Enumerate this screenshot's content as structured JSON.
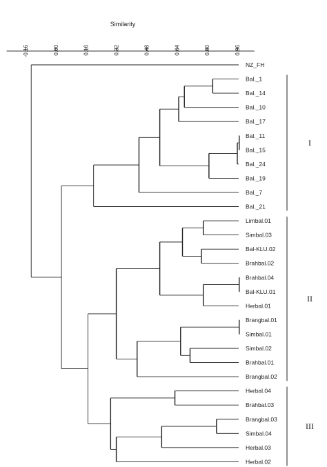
{
  "chart_data": {
    "type": "dendrogram",
    "axis": {
      "title": "Similarity",
      "ticks": [
        "-0.16",
        "0.00",
        "0.16",
        "0.32",
        "0.48",
        "0.64",
        "0.80",
        "0.96"
      ],
      "tick_values": [
        -0.16,
        0.0,
        0.16,
        0.32,
        0.48,
        0.64,
        0.8,
        0.96
      ],
      "range": [
        -0.26,
        1.05
      ]
    },
    "leaves": [
      "NZ_FH",
      "Bal._1",
      "Bal._14",
      "Bal._10",
      "Bal._17",
      "Bal._11",
      "Bal._15",
      "Bal._24",
      "Bal._19",
      "Bal._7",
      "Bal._21",
      "Limbal.01",
      "Simbal.03",
      "Bal-KLU.02",
      "Brahbal.02",
      "Brahbal.04",
      "Bal-KLU.01",
      "Herbal.01",
      "Brangbal.01",
      "Simbal.01",
      "Simbal.02",
      "Brahbal.01",
      "Brangbal.02",
      "Herbal.04",
      "Brahbal.03",
      "Brangbal.03",
      "Simbal.04",
      "Herbal.03",
      "Herbal.02"
    ],
    "merges": [
      {
        "id": "a1",
        "children": [
          "Bal._1",
          "Bal._14"
        ],
        "similarity": 0.83
      },
      {
        "id": "a2",
        "children": [
          "a1",
          "Bal._10"
        ],
        "similarity": 0.68
      },
      {
        "id": "a3",
        "children": [
          "a2",
          "Bal._17"
        ],
        "similarity": 0.65
      },
      {
        "id": "a4",
        "children": [
          "Bal._11",
          "Bal._15"
        ],
        "similarity": 0.97
      },
      {
        "id": "a5",
        "children": [
          "a4",
          "Bal._24"
        ],
        "similarity": 0.96
      },
      {
        "id": "a6",
        "children": [
          "a5",
          "Bal._19"
        ],
        "similarity": 0.81
      },
      {
        "id": "a7",
        "children": [
          "a3",
          "a6"
        ],
        "similarity": 0.55
      },
      {
        "id": "a8",
        "children": [
          "a7",
          "Bal._7"
        ],
        "similarity": 0.44
      },
      {
        "id": "a9",
        "children": [
          "a8",
          "Bal._21"
        ],
        "similarity": 0.2
      },
      {
        "id": "b1",
        "children": [
          "Limbal.01",
          "Simbal.03"
        ],
        "similarity": 0.78
      },
      {
        "id": "b2",
        "children": [
          "Bal-KLU.02",
          "Brahbal.02"
        ],
        "similarity": 0.77
      },
      {
        "id": "b3",
        "children": [
          "b1",
          "b2"
        ],
        "similarity": 0.67
      },
      {
        "id": "b4",
        "children": [
          "Brahbal.04",
          "Bal-KLU.01"
        ],
        "similarity": 0.97
      },
      {
        "id": "b5",
        "children": [
          "b4",
          "Herbal.01"
        ],
        "similarity": 0.78
      },
      {
        "id": "b6",
        "children": [
          "b3",
          "b5"
        ],
        "similarity": 0.55
      },
      {
        "id": "b7",
        "children": [
          "Brangbal.01",
          "Simbal.01"
        ],
        "similarity": 0.97
      },
      {
        "id": "b8",
        "children": [
          "Simbal.02",
          "Brahbal.01"
        ],
        "similarity": 0.71
      },
      {
        "id": "b9",
        "children": [
          "b7",
          "b8"
        ],
        "similarity": 0.66
      },
      {
        "id": "b10",
        "children": [
          "b9",
          "Brangbal.02"
        ],
        "similarity": 0.43
      },
      {
        "id": "b11",
        "children": [
          "b6",
          "b10"
        ],
        "similarity": 0.32
      },
      {
        "id": "c1",
        "children": [
          "Herbal.04",
          "Brahbal.03"
        ],
        "similarity": 0.63
      },
      {
        "id": "c2",
        "children": [
          "Brangbal.03",
          "Simbal.04"
        ],
        "similarity": 0.85
      },
      {
        "id": "c3",
        "children": [
          "c2",
          "Herbal.03"
        ],
        "similarity": 0.56
      },
      {
        "id": "c4",
        "children": [
          "c3",
          "Herbal.02"
        ],
        "similarity": 0.32
      },
      {
        "id": "c5",
        "children": [
          "c1",
          "c4"
        ],
        "similarity": 0.29
      },
      {
        "id": "d1",
        "children": [
          "b11",
          "c5"
        ],
        "similarity": 0.17
      },
      {
        "id": "d2",
        "children": [
          "a9",
          "d1"
        ],
        "similarity": 0.03
      },
      {
        "id": "root",
        "children": [
          "NZ_FH",
          "d2"
        ],
        "similarity": -0.13
      }
    ],
    "groups": [
      {
        "label": "I",
        "from": "Bal._1",
        "to": "Bal._21"
      },
      {
        "label": "II",
        "from": "Limbal.01",
        "to": "Brangbal.02"
      },
      {
        "label": "III",
        "from": "Herbal.04",
        "to": "Herbal.02"
      }
    ]
  }
}
